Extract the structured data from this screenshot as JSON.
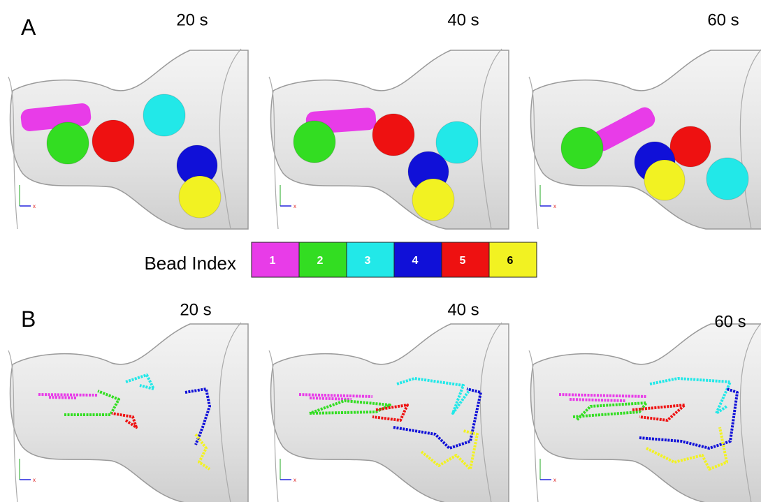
{
  "panels": [
    {
      "label": "A",
      "frames": [
        {
          "time": "20 s"
        },
        {
          "time": "40 s"
        },
        {
          "time": "60 s"
        }
      ]
    },
    {
      "label": "B",
      "frames": [
        {
          "time": "20 s"
        },
        {
          "time": "40 s"
        },
        {
          "time": "60 s"
        }
      ]
    }
  ],
  "axis_label": "x",
  "legend": {
    "title": "Bead Index",
    "items": [
      {
        "label": "1",
        "color": "#e83ce8"
      },
      {
        "label": "2",
        "color": "#33dd22"
      },
      {
        "label": "3",
        "color": "#22e8e8"
      },
      {
        "label": "4",
        "color": "#1010d8"
      },
      {
        "label": "5",
        "color": "#ee1111"
      },
      {
        "label": "6",
        "color": "#f2f222"
      }
    ]
  }
}
